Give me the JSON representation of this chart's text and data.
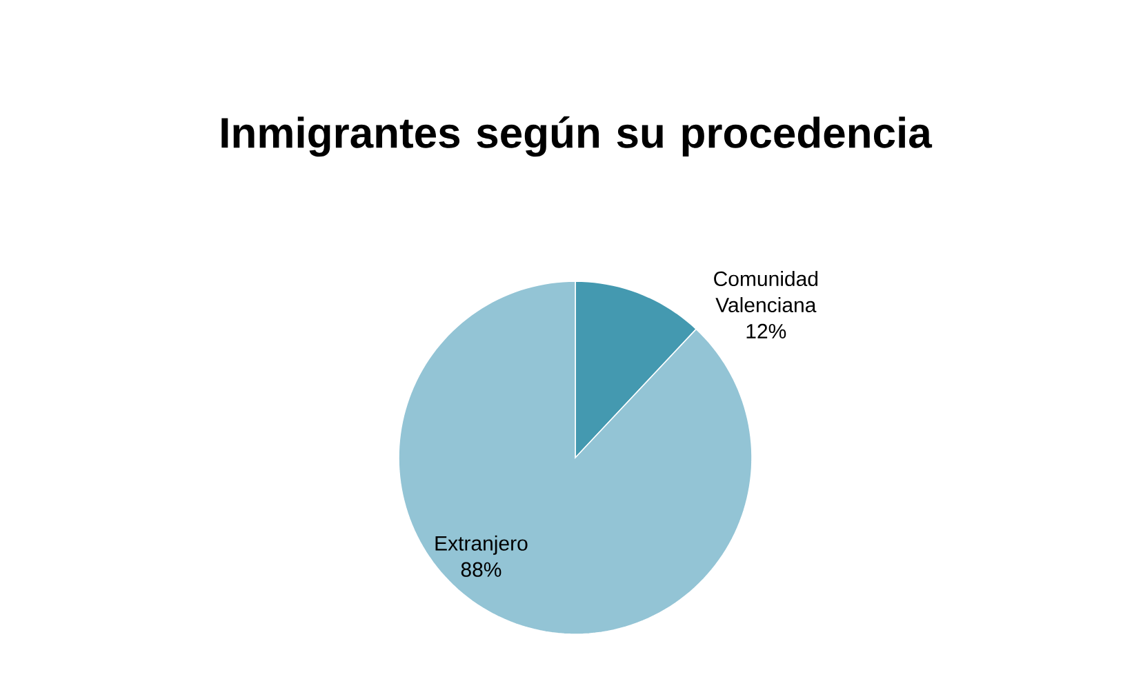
{
  "chart_data": {
    "type": "pie",
    "title": "Inmigrantes según su procedencia",
    "categories": [
      "Comunidad Valenciana",
      "Extranjero"
    ],
    "values": [
      12,
      88
    ],
    "value_labels": [
      "12%",
      "88%"
    ],
    "colors": [
      "#4499b0",
      "#93c4d5"
    ]
  }
}
